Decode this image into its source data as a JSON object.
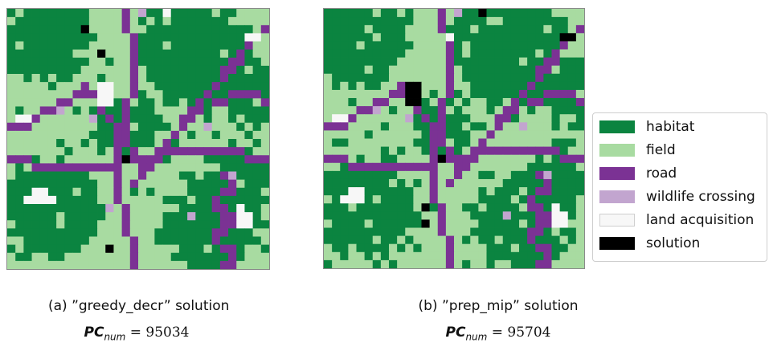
{
  "colors": {
    "habitat": "#0b8440",
    "field": "#a8dba1",
    "road": "#7b3294",
    "wildlife_crossing": "#c2a5cf",
    "land_acquisition": "#f7f7f7",
    "solution": "#000000"
  },
  "legend": {
    "items": [
      {
        "key": "habitat",
        "label": "habitat"
      },
      {
        "key": "field",
        "label": "field"
      },
      {
        "key": "road",
        "label": "road"
      },
      {
        "key": "wildlife_crossing",
        "label": "wildlife crossing"
      },
      {
        "key": "land_acquisition",
        "label": "land acquisition"
      },
      {
        "key": "solution",
        "label": "solution"
      }
    ]
  },
  "panels": [
    {
      "caption": "(a) ”greedy_decr” solution",
      "metric_symbol": "PC",
      "metric_subscript": "num",
      "metric_value": "95034"
    },
    {
      "caption": "(b) ”prep_mip” solution",
      "metric_symbol": "PC",
      "metric_subscript": "num",
      "metric_value": "95704"
    }
  ]
}
